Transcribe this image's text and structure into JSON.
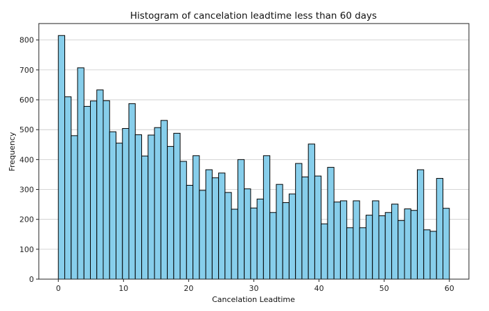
{
  "chart_data": {
    "type": "bar",
    "title": "Histogram of cancelation leadtime less than 60 days",
    "xlabel": "Cancelation Leadtime",
    "ylabel": "Frequency",
    "xlim": [
      -3,
      63
    ],
    "ylim": [
      0,
      855
    ],
    "bin_start": 0,
    "bin_width": 1,
    "grid": "horizontal",
    "x_ticks": [
      0,
      10,
      20,
      30,
      40,
      50,
      60
    ],
    "y_ticks": [
      0,
      100,
      200,
      300,
      400,
      500,
      600,
      700,
      800
    ],
    "bar_color": "#87ceeb",
    "edge_color": "#000000",
    "values": [
      815,
      610,
      480,
      707,
      578,
      596,
      633,
      597,
      493,
      455,
      504,
      587,
      483,
      412,
      482,
      507,
      531,
      444,
      488,
      394,
      314,
      413,
      297,
      366,
      339,
      355,
      290,
      234,
      400,
      302,
      238,
      268,
      413,
      223,
      317,
      256,
      285,
      387,
      342,
      452,
      345,
      185,
      374,
      258,
      262,
      172,
      262,
      172,
      214,
      262,
      212,
      223,
      251,
      196,
      235,
      230,
      366,
      165,
      160,
      337,
      237
    ]
  }
}
